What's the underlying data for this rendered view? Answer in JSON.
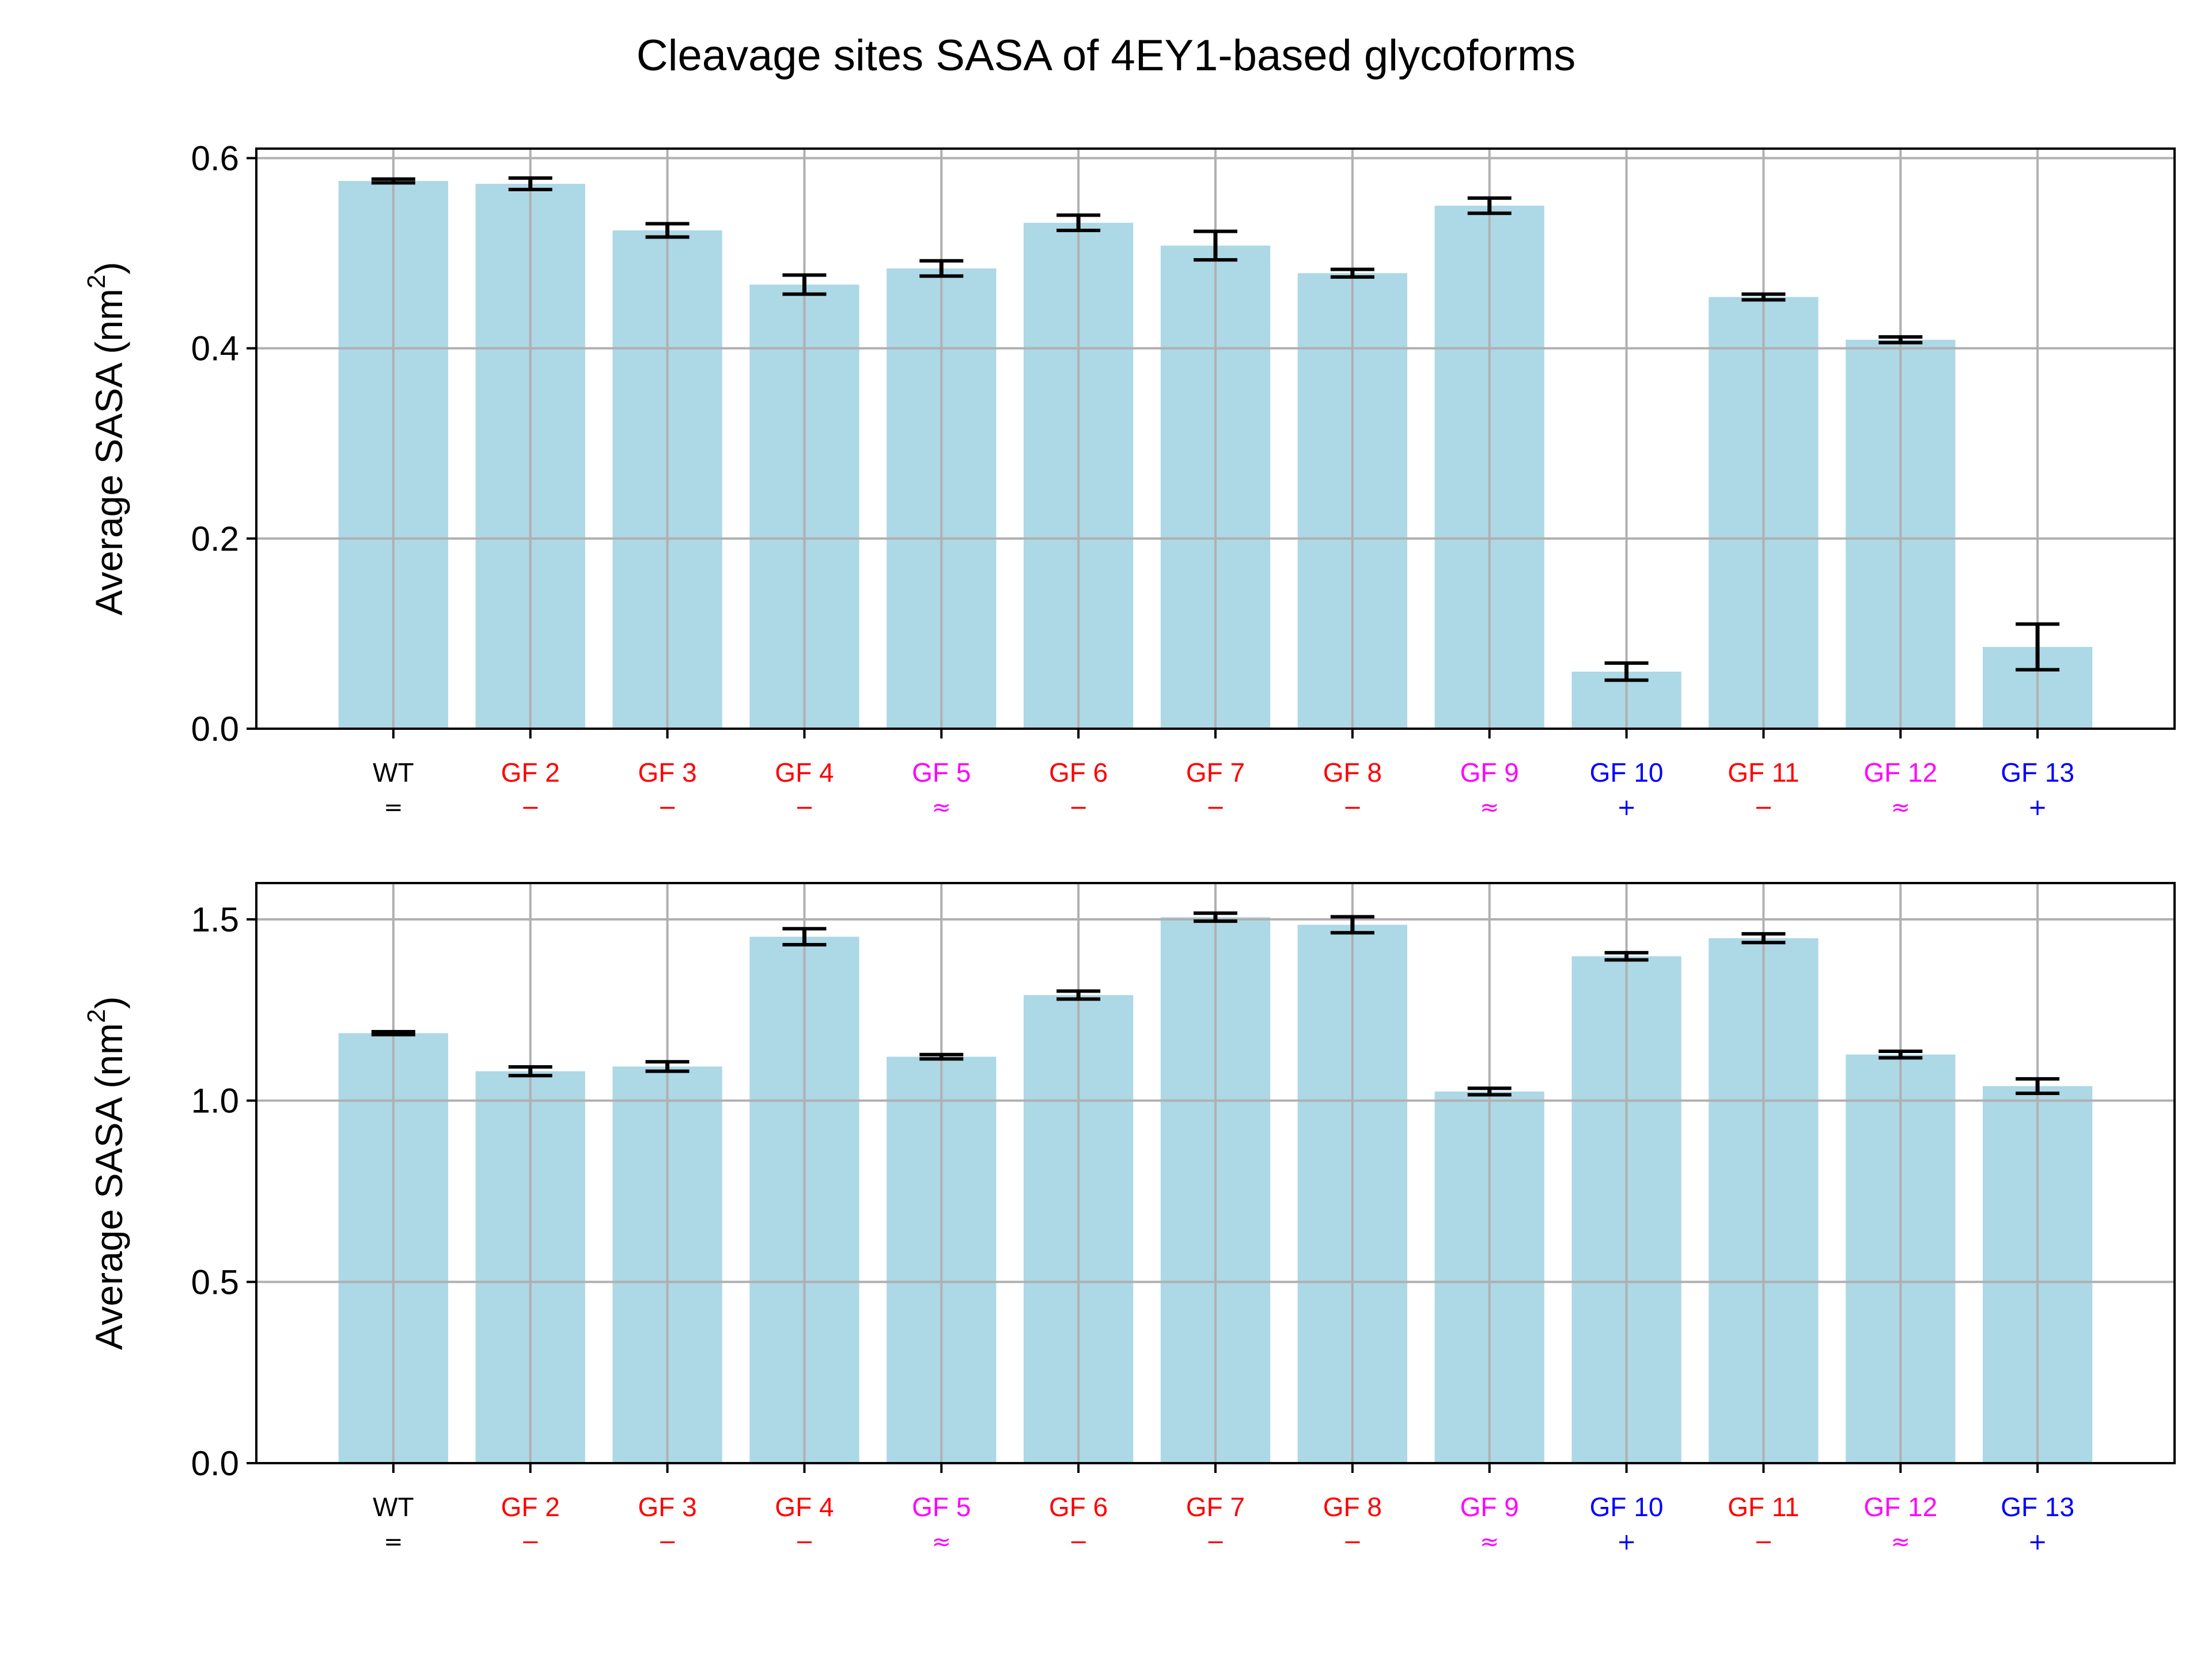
{
  "figure": {
    "title": "Cleavage sites SASA of 4EY1-based glycoforms"
  },
  "chart_data": [
    {
      "type": "bar",
      "title": "",
      "xlabel": "",
      "ylabel": "Average SASA (nm",
      "ylabel_sup": "2",
      "ylabel_close": ")",
      "ylim": [
        0,
        0.61
      ],
      "yticks": [
        0.0,
        0.2,
        0.4,
        0.6
      ],
      "ytick_labels": [
        "0.0",
        "0.2",
        "0.4",
        "0.6"
      ],
      "grid": true,
      "bar_color": "#add8e6",
      "categories": [
        "WT",
        "GF 2",
        "GF 3",
        "GF 4",
        "GF 5",
        "GF 6",
        "GF 7",
        "GF 8",
        "GF 9",
        "GF 10",
        "GF 11",
        "GF 12",
        "GF 13"
      ],
      "symbols": [
        "=",
        "−",
        "−",
        "−",
        "≈",
        "−",
        "−",
        "−",
        "≈",
        "+",
        "−",
        "≈",
        "+"
      ],
      "label_colors": [
        "#000000",
        "#ff0000",
        "#ff0000",
        "#ff0000",
        "#ff00ff",
        "#ff0000",
        "#ff0000",
        "#ff0000",
        "#ff00ff",
        "#0000ff",
        "#ff0000",
        "#ff00ff",
        "#0000ff"
      ],
      "values": [
        0.576,
        0.573,
        0.524,
        0.467,
        0.484,
        0.532,
        0.508,
        0.479,
        0.55,
        0.06,
        0.454,
        0.409,
        0.086
      ],
      "errors": [
        0.002,
        0.006,
        0.007,
        0.01,
        0.008,
        0.008,
        0.015,
        0.004,
        0.008,
        0.009,
        0.003,
        0.003,
        0.024
      ]
    },
    {
      "type": "bar",
      "title": "",
      "xlabel": "",
      "ylabel": "Average SASA (nm",
      "ylabel_sup": "2",
      "ylabel_close": ")",
      "ylim": [
        0,
        1.6
      ],
      "yticks": [
        0.0,
        0.5,
        1.0,
        1.5
      ],
      "ytick_labels": [
        "0.0",
        "0.5",
        "1.0",
        "1.5"
      ],
      "grid": true,
      "bar_color": "#add8e6",
      "categories": [
        "WT",
        "GF 2",
        "GF 3",
        "GF 4",
        "GF 5",
        "GF 6",
        "GF 7",
        "GF 8",
        "GF 9",
        "GF 10",
        "GF 11",
        "GF 12",
        "GF 13"
      ],
      "symbols": [
        "=",
        "−",
        "−",
        "−",
        "≈",
        "−",
        "−",
        "−",
        "≈",
        "+",
        "−",
        "≈",
        "+"
      ],
      "label_colors": [
        "#000000",
        "#ff0000",
        "#ff0000",
        "#ff0000",
        "#ff00ff",
        "#ff0000",
        "#ff0000",
        "#ff0000",
        "#ff00ff",
        "#0000ff",
        "#ff0000",
        "#ff00ff",
        "#0000ff"
      ],
      "values": [
        1.186,
        1.081,
        1.094,
        1.452,
        1.121,
        1.291,
        1.506,
        1.485,
        1.025,
        1.398,
        1.448,
        1.127,
        1.04
      ],
      "errors": [
        0.004,
        0.012,
        0.013,
        0.022,
        0.006,
        0.011,
        0.011,
        0.022,
        0.009,
        0.01,
        0.012,
        0.009,
        0.02
      ]
    }
  ]
}
